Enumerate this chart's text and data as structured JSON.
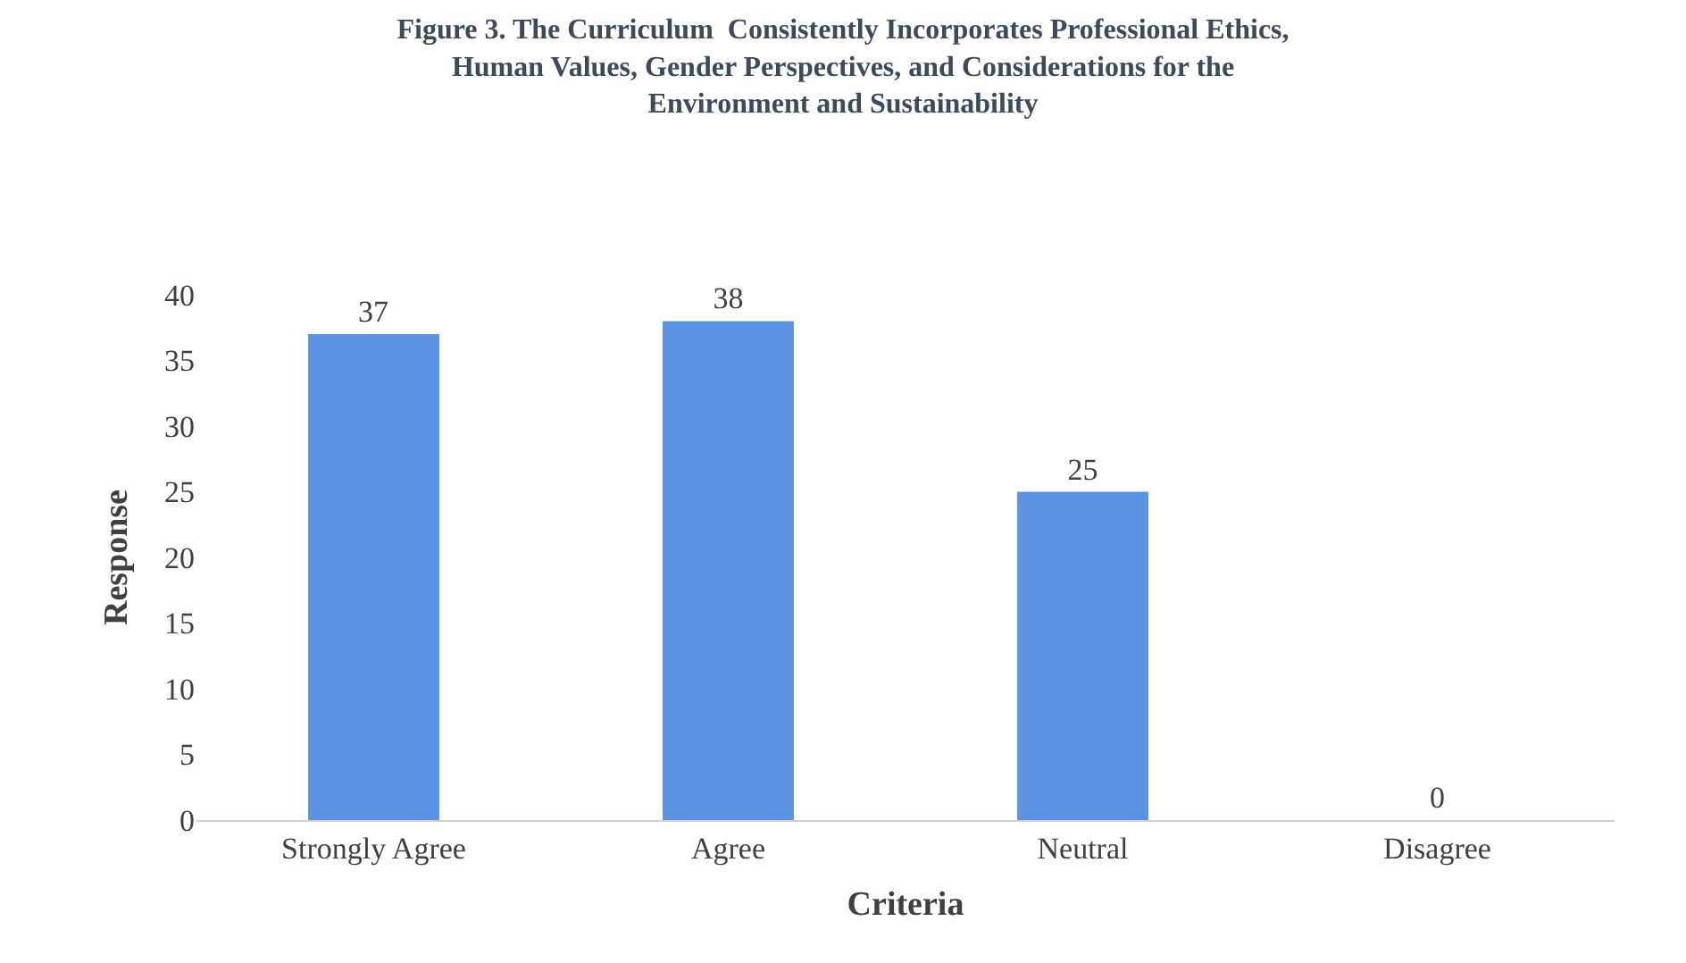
{
  "chart_data": {
    "type": "bar",
    "title": "Figure 3. The Curriculum  Consistently Incorporates Professional Ethics,\nHuman Values, Gender Perspectives, and Considerations for the\nEnvironment and Sustainability",
    "xlabel": "Criteria",
    "ylabel": "Response",
    "categories": [
      "Strongly Agree",
      "Agree",
      "Neutral",
      "Disagree"
    ],
    "values": [
      37,
      38,
      25,
      0
    ],
    "color": "#5b93e2",
    "ylim": [
      0,
      40
    ],
    "yticks": [
      0,
      5,
      10,
      15,
      20,
      25,
      30,
      35,
      40
    ],
    "grid": false,
    "data_labels": true,
    "legend": false
  }
}
